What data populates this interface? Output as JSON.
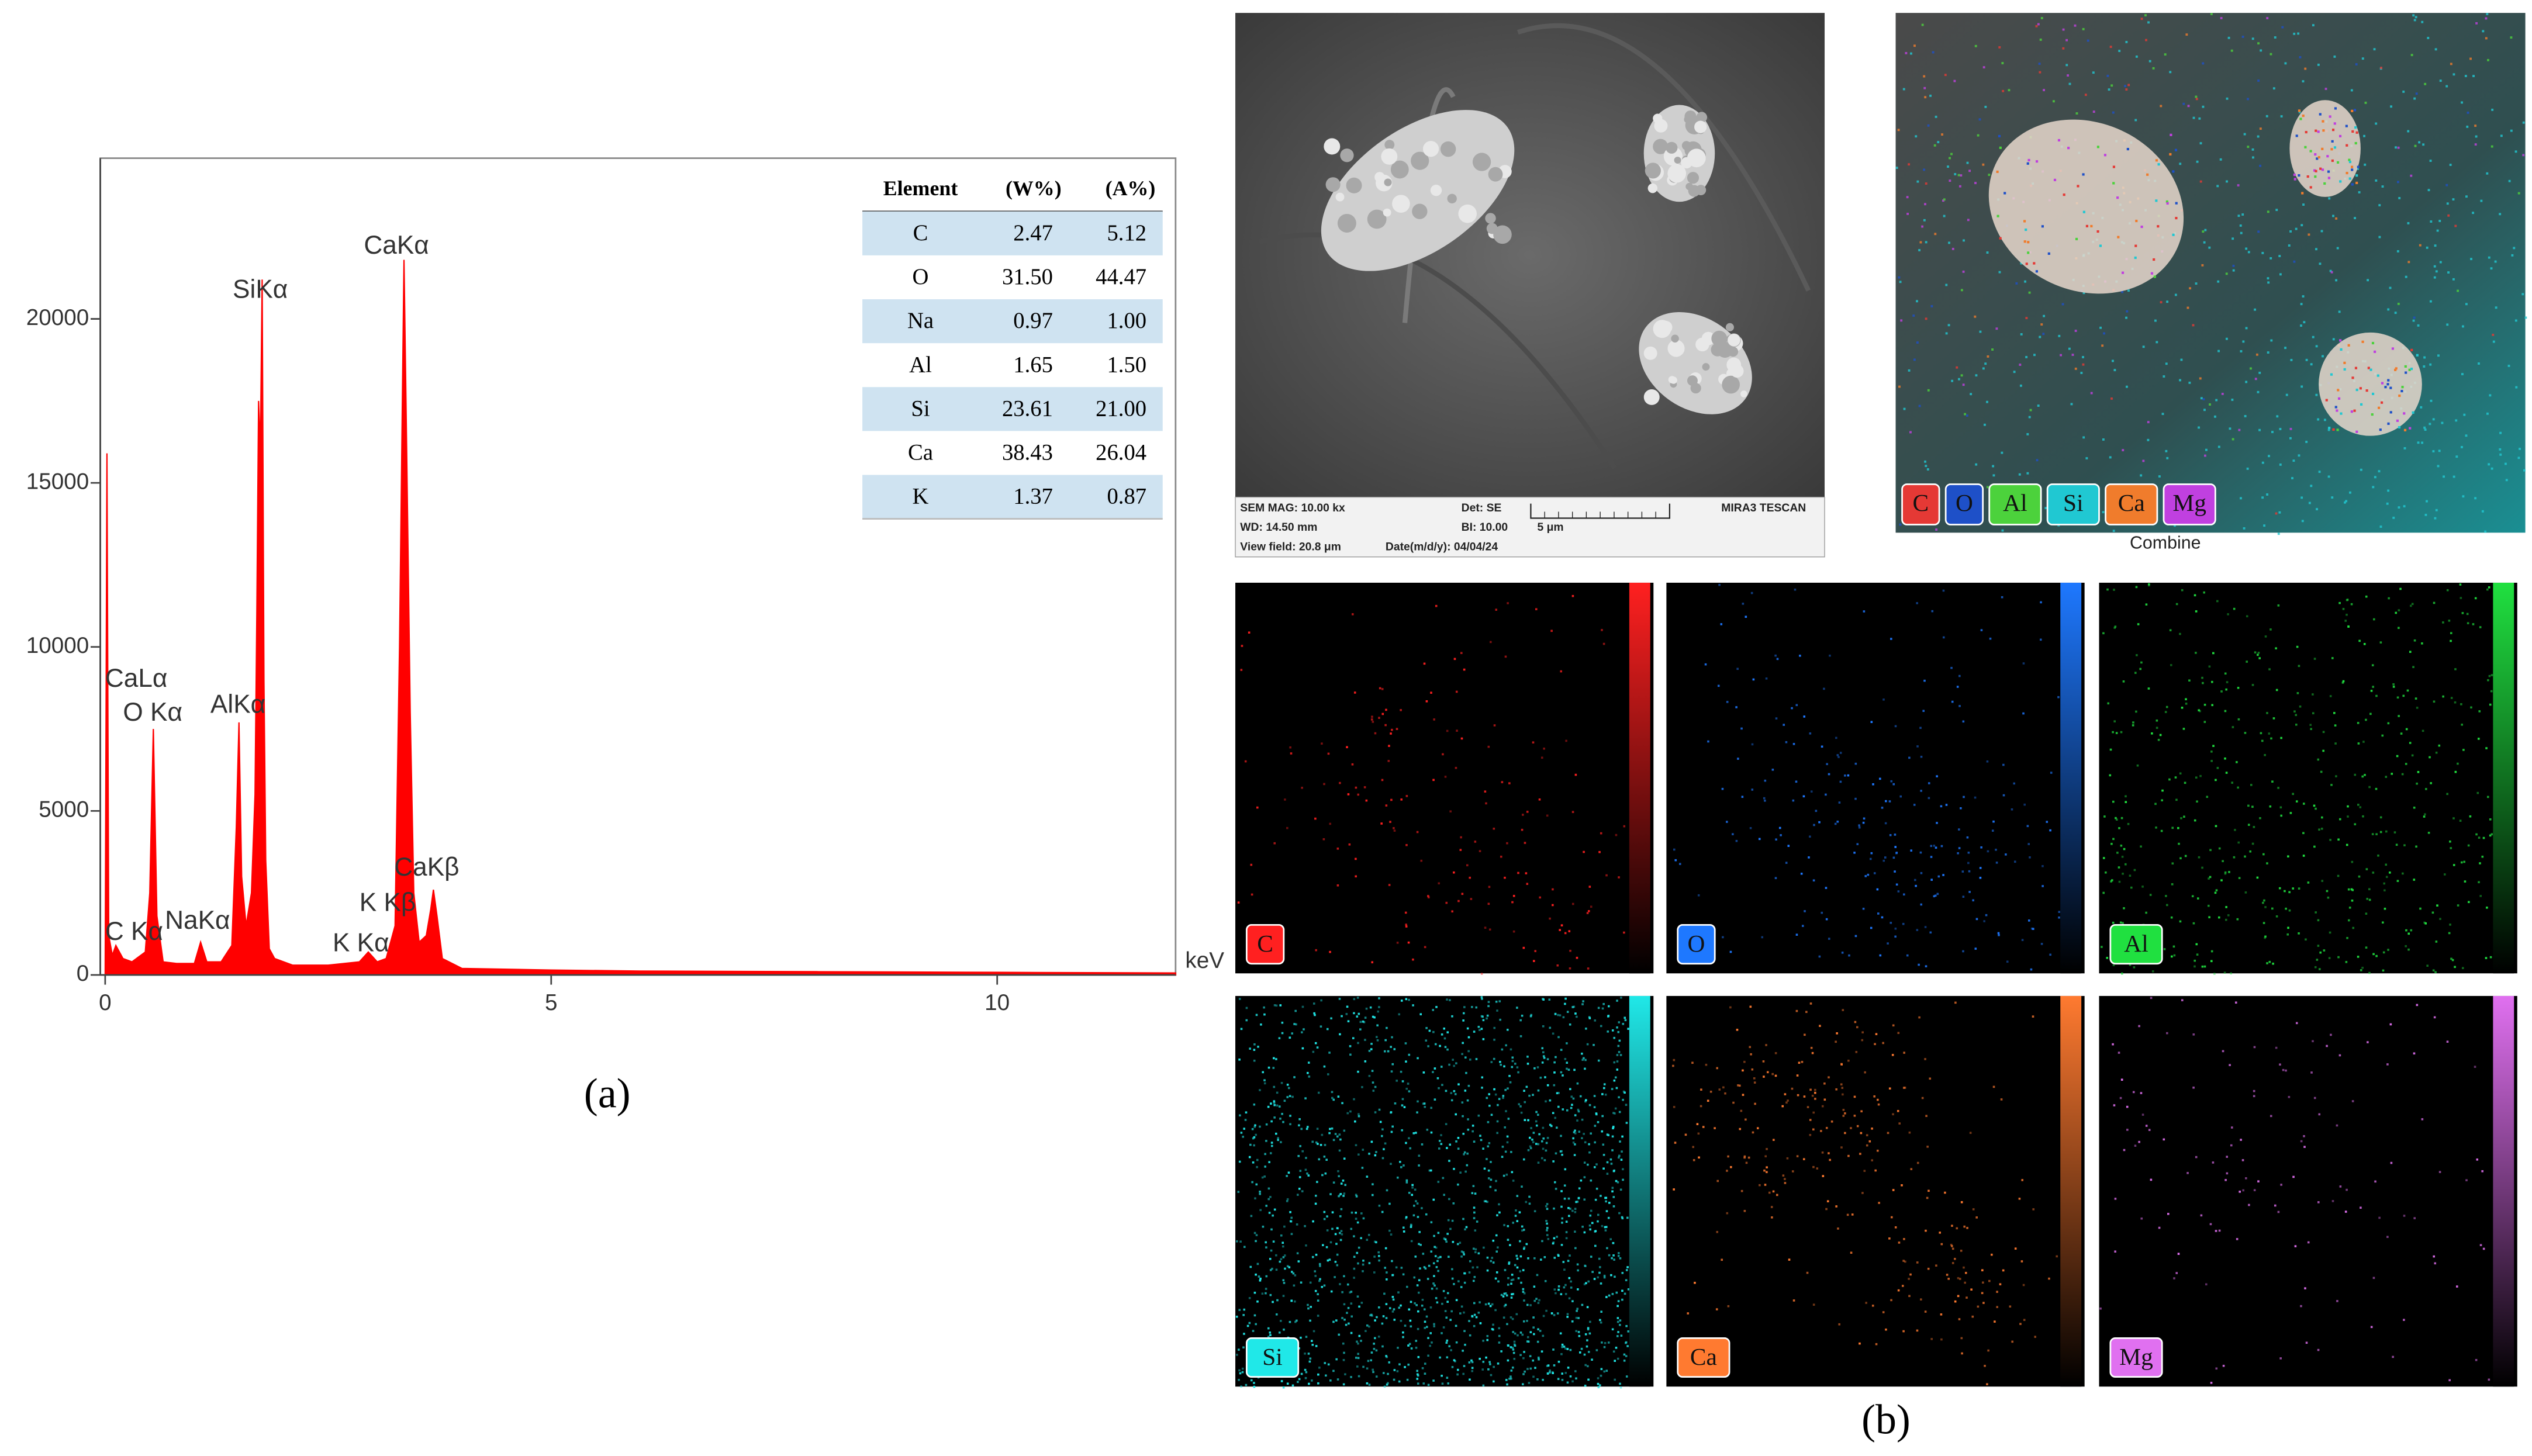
{
  "chart_data": {
    "type": "area",
    "x_label": "keV",
    "x": [
      0,
      0.02,
      0.04,
      0.08,
      0.12,
      0.2,
      0.3,
      0.45,
      0.5,
      0.54,
      0.58,
      0.65,
      0.8,
      1.0,
      1.07,
      1.14,
      1.3,
      1.42,
      1.47,
      1.5,
      1.53,
      1.58,
      1.64,
      1.68,
      1.7,
      1.72,
      1.74,
      1.76,
      1.78,
      1.8,
      1.84,
      1.9,
      2.1,
      2.5,
      2.85,
      2.95,
      3.05,
      3.15,
      3.25,
      3.3,
      3.35,
      3.38,
      3.42,
      3.46,
      3.52,
      3.6,
      3.65,
      3.68,
      3.72,
      3.78,
      4.0,
      5,
      6,
      8,
      10,
      12
    ],
    "series": [
      {
        "color": "#ff0000",
        "values": [
          0,
          15900,
          1200,
          600,
          900,
          500,
          400,
          700,
          2500,
          7500,
          1800,
          400,
          350,
          350,
          1000,
          400,
          400,
          900,
          4500,
          7700,
          3000,
          1500,
          2500,
          5500,
          11000,
          17500,
          16000,
          21200,
          9000,
          3500,
          800,
          500,
          300,
          300,
          400,
          700,
          400,
          500,
          1500,
          10000,
          21800,
          16000,
          8000,
          2500,
          1000,
          1200,
          2000,
          2600,
          1800,
          500,
          200,
          150,
          120,
          100,
          80,
          60
        ]
      }
    ],
    "xlim": [
      0,
      12
    ],
    "xticks": [
      0,
      5,
      10
    ],
    "ylim": [
      0,
      24800
    ],
    "yticks": [
      0,
      5000,
      10000,
      15000,
      20000
    ],
    "annotations": [
      {
        "text": "CaLα",
        "x": 0,
        "y": 8990
      },
      {
        "text": "O Kα",
        "x": 0.2,
        "y": 7960
      },
      {
        "text": "SiKα",
        "x": 1.43,
        "y": 20850
      },
      {
        "text": "AlKα",
        "x": 1.18,
        "y": 8200
      },
      {
        "text": "CaKα",
        "x": 2.9,
        "y": 22200
      },
      {
        "text": "C Kα",
        "x": 0,
        "y": 1280
      },
      {
        "text": "NaKα",
        "x": 0.67,
        "y": 1620
      },
      {
        "text": "K Kα",
        "x": 2.55,
        "y": 930
      },
      {
        "text": "K Kβ",
        "x": 2.85,
        "y": 2160
      },
      {
        "text": "CaKβ",
        "x": 3.24,
        "y": 3240
      }
    ]
  },
  "table": {
    "header": [
      "Element",
      "(W%)",
      "(A%)"
    ],
    "rows": [
      [
        "C",
        "2.47",
        "5.12"
      ],
      [
        "O",
        "31.50",
        "44.47"
      ],
      [
        "Na",
        "0.97",
        "1.00"
      ],
      [
        "Al",
        "1.65",
        "1.50"
      ],
      [
        "Si",
        "23.61",
        "21.00"
      ],
      [
        "Ca",
        "38.43",
        "26.04"
      ],
      [
        "K",
        "1.37",
        "0.87"
      ]
    ]
  },
  "sem_image": {
    "info": [
      "SEM MAG: 10.00 kx",
      "Det: SE",
      "MIRA3 TESCAN",
      "WD: 14.50 mm",
      "BI: 10.00",
      "5 μm",
      "View field: 20.8 μm",
      "Date(m/d/y): 04/04/24"
    ]
  },
  "combined_map": {
    "legend": [
      {
        "label": "C",
        "color": "#e53935"
      },
      {
        "label": "O",
        "color": "#1e50c8"
      },
      {
        "label": "Al",
        "color": "#4cd23c"
      },
      {
        "label": "Si",
        "color": "#20c8d2"
      },
      {
        "label": "Ca",
        "color": "#f07c2c"
      },
      {
        "label": "Mg",
        "color": "#c040e0"
      }
    ],
    "caption": "Combine"
  },
  "element_maps": [
    {
      "label": "C",
      "color": "#ff2020"
    },
    {
      "label": "O",
      "color": "#1e78ff"
    },
    {
      "label": "Al",
      "color": "#20e040"
    },
    {
      "label": "Si",
      "color": "#20e8e8"
    },
    {
      "label": "Ca",
      "color": "#ff7a30"
    },
    {
      "label": "Mg",
      "color": "#e070f0"
    }
  ],
  "captions": [
    "(a)",
    "(b)"
  ]
}
